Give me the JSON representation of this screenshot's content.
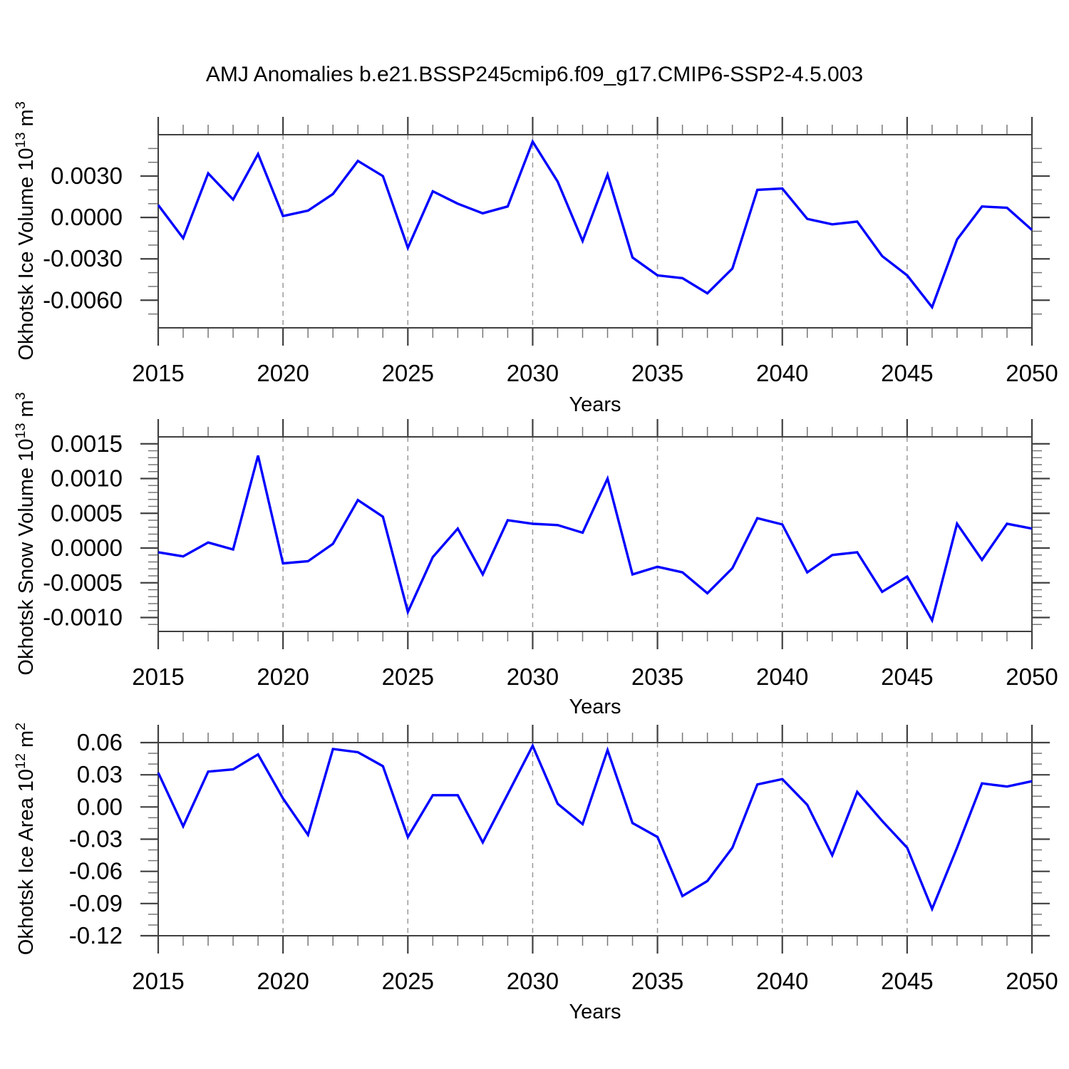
{
  "title": "AMJ Anomalies b.e21.BSSP245cmip6.f09_g17.CMIP6-SSP2-4.5.003",
  "colors": {
    "line": "#0000ff",
    "grid": "#999999",
    "box": "#404040",
    "tick_major": "#404040",
    "tick_minor": "#777777",
    "text": "#000000"
  },
  "chart_data": [
    {
      "type": "line",
      "id": "ice-volume",
      "ylabel": "Okhotsk Ice Volume 10^13 m^3",
      "ylabel_segments": [
        {
          "t": "Okhotsk Ice Volume 10",
          "sup": false
        },
        {
          "t": "13",
          "sup": true
        },
        {
          "t": " m",
          "sup": false
        },
        {
          "t": "3",
          "sup": true
        }
      ],
      "xlabel": "Years",
      "x": [
        2015,
        2016,
        2017,
        2018,
        2019,
        2020,
        2021,
        2022,
        2023,
        2024,
        2025,
        2026,
        2027,
        2028,
        2029,
        2030,
        2031,
        2032,
        2033,
        2034,
        2035,
        2036,
        2037,
        2038,
        2039,
        2040,
        2041,
        2042,
        2043,
        2044,
        2045,
        2046,
        2047,
        2048,
        2049,
        2050
      ],
      "values": [
        0.0009,
        -0.0015,
        0.0032,
        0.0013,
        0.0046,
        0.0001,
        0.0005,
        0.0017,
        0.0041,
        0.003,
        -0.0022,
        0.0019,
        0.001,
        0.0003,
        0.0008,
        0.0055,
        0.0026,
        -0.0017,
        0.0031,
        -0.0029,
        -0.0042,
        -0.0044,
        -0.0055,
        -0.0037,
        0.002,
        0.0021,
        -0.0001,
        -0.0005,
        -0.0003,
        -0.0028,
        -0.0042,
        -0.0065,
        -0.0016,
        0.0008,
        0.0007,
        -0.0009
      ],
      "xlim": [
        2015,
        2050
      ],
      "ylim": [
        -0.008,
        0.006
      ],
      "xtick_values": [
        2015,
        2020,
        2025,
        2030,
        2035,
        2040,
        2045,
        2050
      ],
      "xtick_labels": [
        "2015",
        "2020",
        "2025",
        "2030",
        "2035",
        "2040",
        "2045",
        "2050"
      ],
      "xtick_minor_step": 1,
      "ytick_values": [
        0.003,
        0,
        -0.003,
        -0.006
      ],
      "ytick_labels": [
        "0.0030",
        "0.0000",
        "-0.0030",
        "-0.0060"
      ],
      "ytick_minor": 0.001,
      "grid_x": [
        2020,
        2025,
        2030,
        2035,
        2040,
        2045
      ],
      "legend": "none"
    },
    {
      "type": "line",
      "id": "snow-volume",
      "ylabel": "Okhotsk Snow Volume 10^13 m^3",
      "ylabel_segments": [
        {
          "t": "Okhotsk Snow Volume 10",
          "sup": false
        },
        {
          "t": "13",
          "sup": true
        },
        {
          "t": " m",
          "sup": false
        },
        {
          "t": "3",
          "sup": true
        }
      ],
      "xlabel": "Years",
      "x": [
        2015,
        2016,
        2017,
        2018,
        2019,
        2020,
        2021,
        2022,
        2023,
        2024,
        2025,
        2026,
        2027,
        2028,
        2029,
        2030,
        2031,
        2032,
        2033,
        2034,
        2035,
        2036,
        2037,
        2038,
        2039,
        2040,
        2041,
        2042,
        2043,
        2044,
        2045,
        2046,
        2047,
        2048,
        2049,
        2050
      ],
      "values": [
        -6e-05,
        -0.00012,
        8e-05,
        -2e-05,
        0.00133,
        -0.00022,
        -0.00019,
        6e-05,
        0.00069,
        0.00045,
        -0.00092,
        -0.00013,
        0.00028,
        -0.00038,
        0.0004,
        0.00035,
        0.00033,
        0.00022,
        0.001,
        -0.00038,
        -0.00027,
        -0.00035,
        -0.00065,
        -0.00029,
        0.00043,
        0.00034,
        -0.00035,
        -0.0001,
        -6e-05,
        -0.00063,
        -0.00041,
        -0.00104,
        0.00035,
        -0.00017,
        0.00035,
        0.00028
      ],
      "xlim": [
        2015,
        2050
      ],
      "ylim": [
        -0.0012,
        0.0016
      ],
      "xtick_values": [
        2015,
        2020,
        2025,
        2030,
        2035,
        2040,
        2045,
        2050
      ],
      "xtick_labels": [
        "2015",
        "2020",
        "2025",
        "2030",
        "2035",
        "2040",
        "2045",
        "2050"
      ],
      "xtick_minor_step": 1,
      "ytick_values": [
        0.0015,
        0.001,
        0.0005,
        0,
        -0.0005,
        -0.001
      ],
      "ytick_labels": [
        "0.0015",
        "0.0010",
        "0.0005",
        "0.0000",
        "-0.0005",
        "-0.0010"
      ],
      "ytick_minor": 0.0001,
      "grid_x": [
        2020,
        2025,
        2030,
        2035,
        2040,
        2045
      ],
      "legend": "none"
    },
    {
      "type": "line",
      "id": "ice-area",
      "ylabel": "Okhotsk Ice Area 10^12 m^2",
      "ylabel_segments": [
        {
          "t": "Okhotsk Ice Area 10",
          "sup": false
        },
        {
          "t": "12",
          "sup": true
        },
        {
          "t": " m",
          "sup": false
        },
        {
          "t": "2",
          "sup": true
        }
      ],
      "xlabel": "Years",
      "x": [
        2015,
        2016,
        2017,
        2018,
        2019,
        2020,
        2021,
        2022,
        2023,
        2024,
        2025,
        2026,
        2027,
        2028,
        2029,
        2030,
        2031,
        2032,
        2033,
        2034,
        2035,
        2036,
        2037,
        2038,
        2039,
        2040,
        2041,
        2042,
        2043,
        2044,
        2045,
        2046,
        2047,
        2048,
        2049,
        2050
      ],
      "values": [
        0.032,
        -0.018,
        0.033,
        0.035,
        0.049,
        0.008,
        -0.026,
        0.054,
        0.051,
        0.038,
        -0.028,
        0.011,
        0.011,
        -0.033,
        0.012,
        0.057,
        0.003,
        -0.016,
        0.053,
        -0.015,
        -0.028,
        -0.083,
        -0.069,
        -0.038,
        0.021,
        0.026,
        0.002,
        -0.045,
        0.014,
        -0.013,
        -0.038,
        -0.095,
        -0.038,
        0.022,
        0.019,
        0.024
      ],
      "xlim": [
        2015,
        2050
      ],
      "ylim": [
        -0.12,
        0.06
      ],
      "xtick_values": [
        2015,
        2020,
        2025,
        2030,
        2035,
        2040,
        2045,
        2050
      ],
      "xtick_labels": [
        "2015",
        "2020",
        "2025",
        "2030",
        "2035",
        "2040",
        "2045",
        "2050"
      ],
      "xtick_minor_step": 1,
      "ytick_values": [
        0.06,
        0.03,
        0,
        -0.03,
        -0.06,
        -0.09,
        -0.12
      ],
      "ytick_labels": [
        "0.06",
        "0.03",
        "0.00",
        "-0.03",
        "-0.06",
        "-0.09",
        "-0.12"
      ],
      "ytick_minor": 0.01,
      "grid_x": [
        2020,
        2025,
        2030,
        2035,
        2040,
        2045
      ],
      "legend": "none"
    }
  ]
}
